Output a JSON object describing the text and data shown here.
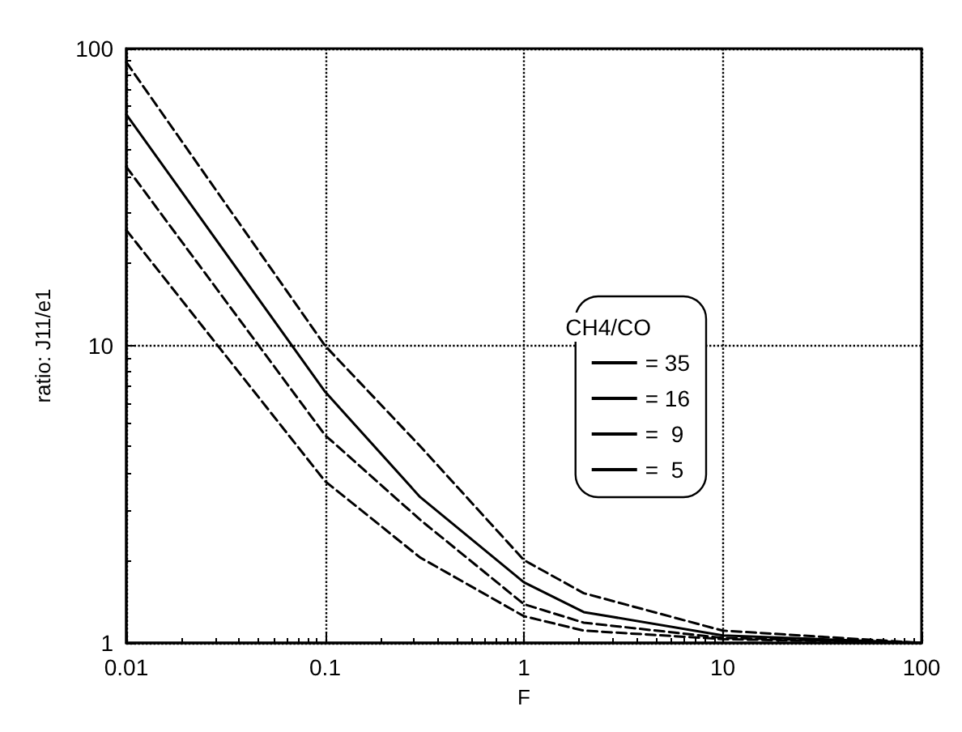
{
  "chart_data": {
    "type": "line",
    "xlabel": "F",
    "ylabel": "ratio: J11/e1",
    "legend_title": "CH4/CO",
    "log": "xy",
    "grid": true,
    "legend": "right",
    "marker": "none",
    "xlim": [
      0.01,
      100
    ],
    "ylim": [
      1,
      100
    ],
    "xticks": [
      0.01,
      0.1,
      1,
      10,
      100
    ],
    "yticks": [
      1,
      10,
      100
    ],
    "x": [
      0.01,
      0.1,
      0.3,
      1,
      2,
      10,
      100
    ],
    "series": [
      {
        "name": "= 35",
        "color": "#000000",
        "line_style": "dashed",
        "values": [
          90,
          10,
          4.6,
          1.9,
          1.47,
          1.1,
          1.0
        ]
      },
      {
        "name": "= 16",
        "color": "#000000",
        "line_style": "solid",
        "values": [
          60,
          7,
          3.1,
          1.6,
          1.27,
          1.06,
          1.0
        ]
      },
      {
        "name": "=  9",
        "color": "#000000",
        "line_style": "dashed",
        "values": [
          40,
          5,
          2.6,
          1.35,
          1.17,
          1.04,
          1.0
        ]
      },
      {
        "name": "=  5",
        "color": "#000000",
        "line_style": "dashed",
        "values": [
          24.5,
          3.5,
          1.94,
          1.23,
          1.1,
          1.03,
          1.0
        ]
      }
    ]
  }
}
